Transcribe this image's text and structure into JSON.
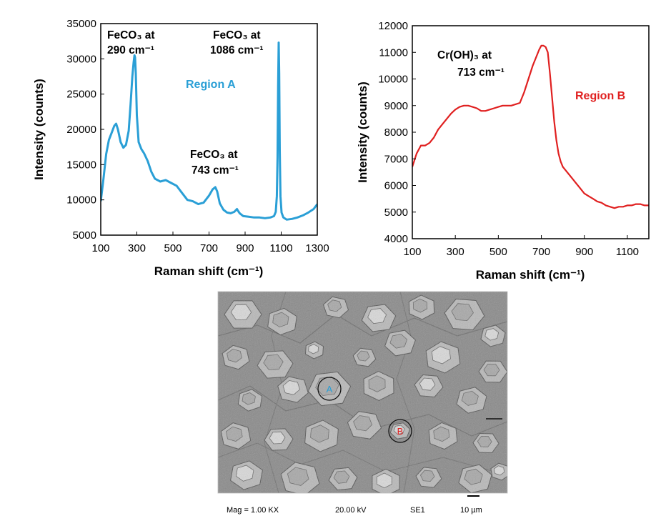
{
  "chart_data": [
    {
      "type": "line",
      "xlabel": "Raman shift (cm⁻¹)",
      "ylabel": "Intensity (counts)",
      "xlim": [
        100,
        1300
      ],
      "ylim": [
        5000,
        35000
      ],
      "xticks": [
        "100",
        "300",
        "500",
        "700",
        "900",
        "1100",
        "1300"
      ],
      "yticks": [
        "5000",
        "10000",
        "15000",
        "20000",
        "25000",
        "30000",
        "35000"
      ],
      "grid": false,
      "series_label": "Region A",
      "color": "#2a9fd6",
      "annotations": [
        {
          "line1": "FeCO₃ at",
          "line2": "290 cm⁻¹"
        },
        {
          "line1": "FeCO₃ at",
          "line2": "1086 cm⁻¹"
        },
        {
          "line1": "FeCO₃ at",
          "line2": "743 cm⁻¹"
        }
      ],
      "series": [
        {
          "x": [
            100,
            115,
            130,
            145,
            160,
            175,
            185,
            195,
            210,
            225,
            240,
            255,
            265,
            275,
            282,
            287,
            290,
            294,
            300,
            310,
            325,
            340,
            360,
            380,
            400,
            430,
            460,
            490,
            520,
            550,
            580,
            610,
            640,
            670,
            700,
            720,
            735,
            745,
            760,
            780,
            800,
            820,
            840,
            855,
            862,
            870,
            890,
            920,
            950,
            980,
            1010,
            1040,
            1060,
            1070,
            1076,
            1080,
            1083,
            1086,
            1089,
            1092,
            1096,
            1102,
            1112,
            1130,
            1160,
            1190,
            1220,
            1250,
            1280,
            1300
          ],
          "y": [
            9800,
            13000,
            16500,
            18500,
            19500,
            20500,
            20800,
            20000,
            18200,
            17400,
            17800,
            19800,
            23500,
            27500,
            29500,
            30500,
            30200,
            28000,
            22000,
            18200,
            17200,
            16600,
            15500,
            14000,
            13000,
            12600,
            12800,
            12400,
            12000,
            11000,
            10000,
            9800,
            9400,
            9600,
            10600,
            11500,
            11800,
            11200,
            9500,
            8600,
            8200,
            8100,
            8300,
            8700,
            8400,
            8100,
            7700,
            7600,
            7500,
            7500,
            7400,
            7500,
            7700,
            8300,
            10500,
            16000,
            26000,
            32300,
            28000,
            17000,
            10500,
            8200,
            7500,
            7200,
            7300,
            7500,
            7800,
            8200,
            8700,
            9400
          ]
        }
      ]
    },
    {
      "type": "line",
      "xlabel": "Raman shift (cm⁻¹)",
      "ylabel": "Intensity  (counts)",
      "xlim": [
        100,
        1200
      ],
      "ylim": [
        4000,
        12000
      ],
      "xticks": [
        "100",
        "300",
        "500",
        "700",
        "900",
        "1100"
      ],
      "yticks": [
        "4000",
        "5000",
        "6000",
        "7000",
        "8000",
        "9000",
        "10000",
        "11000",
        "12000"
      ],
      "grid": false,
      "series_label": "Region B",
      "color": "#e02020",
      "annotations": [
        {
          "line1": "Cr(OH)₃ at",
          "line2": "713 cm⁻¹"
        }
      ],
      "series": [
        {
          "x": [
            100,
            120,
            140,
            160,
            180,
            200,
            220,
            240,
            260,
            280,
            300,
            320,
            340,
            360,
            380,
            400,
            420,
            440,
            460,
            480,
            500,
            520,
            540,
            560,
            580,
            600,
            620,
            640,
            660,
            680,
            690,
            700,
            710,
            720,
            730,
            740,
            750,
            760,
            770,
            780,
            790,
            800,
            820,
            840,
            860,
            880,
            900,
            920,
            940,
            960,
            980,
            1000,
            1020,
            1040,
            1060,
            1080,
            1100,
            1120,
            1140,
            1160,
            1180,
            1200
          ],
          "y": [
            6700,
            7200,
            7500,
            7500,
            7600,
            7800,
            8100,
            8300,
            8500,
            8700,
            8850,
            8950,
            9000,
            9000,
            8950,
            8900,
            8800,
            8800,
            8850,
            8900,
            8950,
            9000,
            9000,
            9000,
            9050,
            9100,
            9500,
            10000,
            10500,
            10900,
            11100,
            11250,
            11250,
            11200,
            11000,
            10200,
            9300,
            8400,
            7700,
            7200,
            6900,
            6700,
            6500,
            6300,
            6100,
            5900,
            5700,
            5600,
            5500,
            5400,
            5350,
            5250,
            5200,
            5150,
            5200,
            5200,
            5250,
            5250,
            5300,
            5300,
            5250,
            5250
          ]
        }
      ]
    }
  ],
  "sem": {
    "marker_a": "A",
    "marker_b": "B",
    "color_a": "#2a9fd6",
    "color_b": "#e02020",
    "footer": {
      "mag": "Mag = 1.00 KX",
      "kv": "20.00 kV",
      "det": "SE1",
      "scale": "10 µm"
    }
  }
}
